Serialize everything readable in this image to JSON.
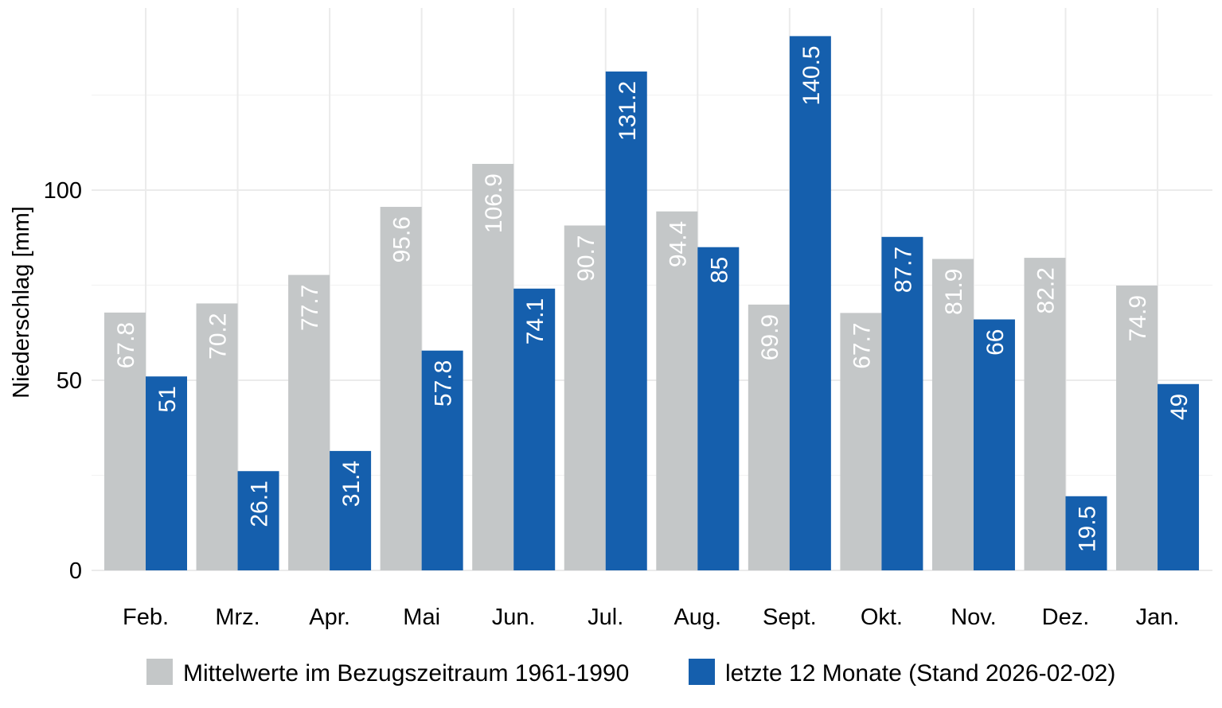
{
  "chart_data": {
    "type": "bar",
    "title": "",
    "xlabel": "",
    "ylabel": "Niederschlag [mm]",
    "ylim": [
      0,
      148
    ],
    "yticks": [
      0,
      50,
      100
    ],
    "grid": true,
    "legend_position": "bottom",
    "categories": [
      "Feb.",
      "Mrz.",
      "Apr.",
      "Mai",
      "Jun.",
      "Jul.",
      "Aug.",
      "Sept.",
      "Okt.",
      "Nov.",
      "Dez.",
      "Jan."
    ],
    "series": [
      {
        "name": "Mittelwerte im Bezugszeitraum 1961-1990",
        "color": "#c4c7c8",
        "values": [
          67.8,
          70.2,
          77.7,
          95.6,
          106.9,
          90.7,
          94.4,
          69.9,
          67.7,
          81.9,
          82.2,
          74.9
        ]
      },
      {
        "name": "letzte 12 Monate (Stand 2026-02-02)",
        "color": "#155fad",
        "values": [
          51,
          26.1,
          31.4,
          57.8,
          74.1,
          131.2,
          85,
          140.5,
          87.7,
          66,
          19.5,
          49
        ]
      }
    ]
  }
}
